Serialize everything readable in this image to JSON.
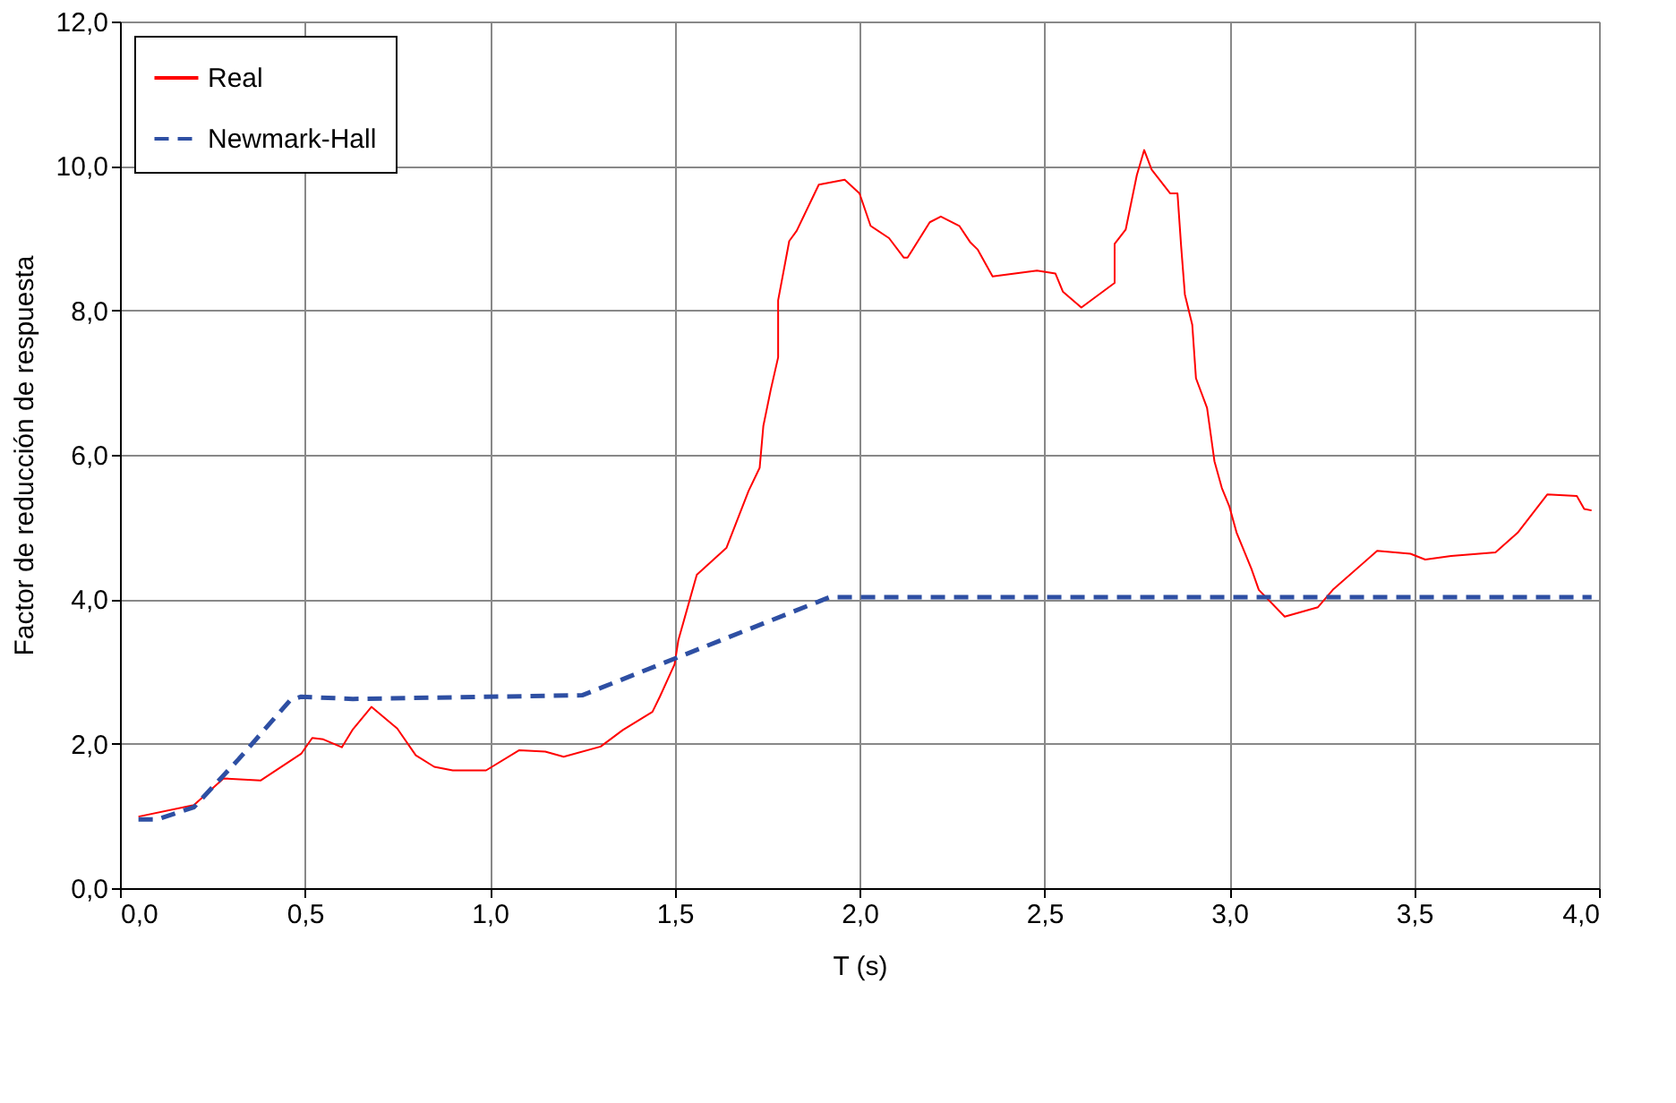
{
  "chart_data": {
    "type": "line",
    "xlabel": "T (s)",
    "ylabel": "Factor de reducción de respuesta",
    "xlim": [
      0,
      4
    ],
    "ylim": [
      0,
      12
    ],
    "xticks": [
      {
        "value": 0,
        "label": "0,0"
      },
      {
        "value": 0.5,
        "label": "0,5"
      },
      {
        "value": 1,
        "label": "1,0"
      },
      {
        "value": 1.5,
        "label": "1,5"
      },
      {
        "value": 2,
        "label": "2,0"
      },
      {
        "value": 2.5,
        "label": "2,5"
      },
      {
        "value": 3,
        "label": "3,0"
      },
      {
        "value": 3.5,
        "label": "3,5"
      },
      {
        "value": 4,
        "label": "4,0"
      }
    ],
    "yticks": [
      {
        "value": 0,
        "label": "0,0"
      },
      {
        "value": 2,
        "label": "2,0"
      },
      {
        "value": 4,
        "label": "4,0"
      },
      {
        "value": 6,
        "label": "6,0"
      },
      {
        "value": 8,
        "label": "8,0"
      },
      {
        "value": 10,
        "label": "10,0"
      },
      {
        "value": 12,
        "label": "12,0"
      }
    ],
    "grid": true,
    "legend": "top left",
    "series": [
      {
        "name": "Real",
        "color": "#ff0000",
        "line_style": "solid",
        "x": [
          0.05,
          0.2,
          0.28,
          0.38,
          0.49,
          0.52,
          0.55,
          0.6,
          0.63,
          0.68,
          0.75,
          0.8,
          0.85,
          0.9,
          0.99,
          1.08,
          1.15,
          1.2,
          1.3,
          1.36,
          1.44,
          1.46,
          1.5,
          1.51,
          1.56,
          1.64,
          1.7,
          1.73,
          1.74,
          1.76,
          1.78,
          1.78,
          1.81,
          1.83,
          1.89,
          1.96,
          2.0,
          2.03,
          2.08,
          2.12,
          2.13,
          2.19,
          2.22,
          2.27,
          2.3,
          2.32,
          2.36,
          2.48,
          2.53,
          2.55,
          2.6,
          2.69,
          2.69,
          2.72,
          2.75,
          2.77,
          2.79,
          2.84,
          2.86,
          2.87,
          2.88,
          2.9,
          2.91,
          2.94,
          2.96,
          2.98,
          3.0,
          3.02,
          3.06,
          3.08,
          3.15,
          3.24,
          3.28,
          3.4,
          3.49,
          3.53,
          3.6,
          3.72,
          3.78,
          3.86,
          3.94,
          3.96,
          3.98
        ],
        "values": [
          0.99,
          1.15,
          1.52,
          1.49,
          1.86,
          2.08,
          2.06,
          1.95,
          2.2,
          2.51,
          2.21,
          1.84,
          1.68,
          1.63,
          1.63,
          1.91,
          1.89,
          1.82,
          1.96,
          2.19,
          2.44,
          2.65,
          3.1,
          3.43,
          4.34,
          4.71,
          5.5,
          5.82,
          6.4,
          6.9,
          7.35,
          8.14,
          8.96,
          9.1,
          9.74,
          9.81,
          9.62,
          9.17,
          9.0,
          8.73,
          8.73,
          9.22,
          9.3,
          9.17,
          8.94,
          8.84,
          8.47,
          8.55,
          8.51,
          8.26,
          8.04,
          8.38,
          8.92,
          9.12,
          9.87,
          10.22,
          9.95,
          9.62,
          9.62,
          8.88,
          8.22,
          7.8,
          7.06,
          6.65,
          5.91,
          5.54,
          5.29,
          4.92,
          4.42,
          4.13,
          3.76,
          3.89,
          4.13,
          4.67,
          4.63,
          4.55,
          4.6,
          4.65,
          4.92,
          5.45,
          5.43,
          5.25,
          5.23
        ]
      },
      {
        "name": "Newmark-Hall",
        "color": "#2e4fa3",
        "line_style": "dashed",
        "x": [
          0.05,
          0.1,
          0.2,
          0.32,
          0.46,
          0.49,
          0.63,
          1.25,
          1.92,
          3.98
        ],
        "values": [
          0.95,
          0.95,
          1.12,
          1.78,
          2.6,
          2.65,
          2.62,
          2.67,
          4.03,
          4.03
        ]
      }
    ]
  }
}
